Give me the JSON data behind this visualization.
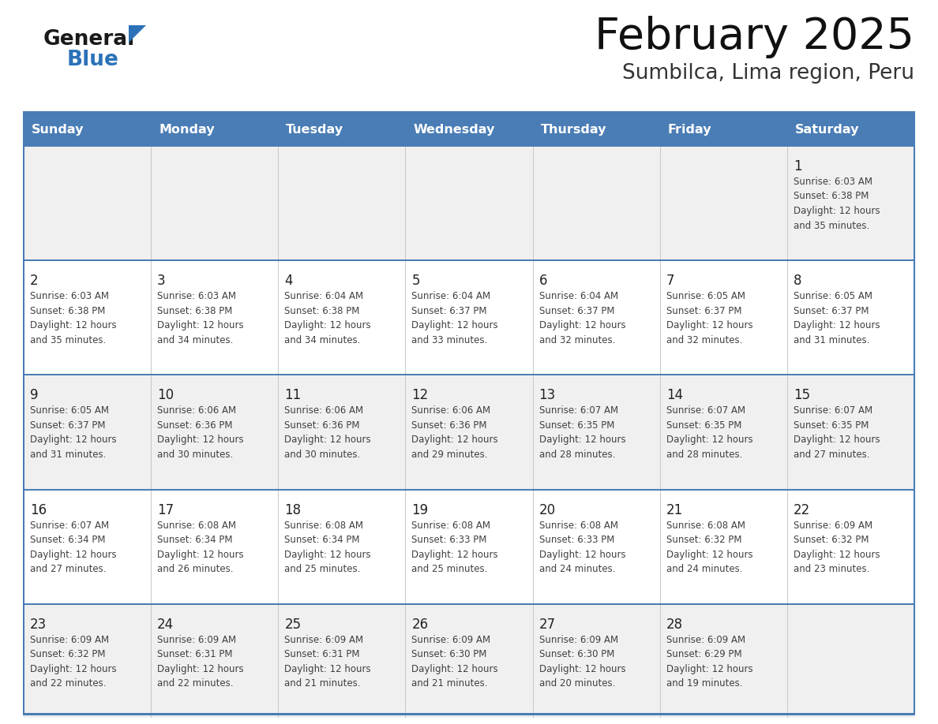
{
  "title": "February 2025",
  "subtitle": "Sumbilca, Lima region, Peru",
  "days_of_week": [
    "Sunday",
    "Monday",
    "Tuesday",
    "Wednesday",
    "Thursday",
    "Friday",
    "Saturday"
  ],
  "header_bg": "#4A7DB5",
  "header_text": "#FFFFFF",
  "cell_bg_even": "#F0F0F0",
  "cell_bg_odd": "#FFFFFF",
  "text_color": "#404040",
  "day_num_color": "#222222",
  "line_color": "#4A7DB5",
  "sep_color": "#C8C8C8",
  "calendar": [
    [
      null,
      null,
      null,
      null,
      null,
      null,
      1
    ],
    [
      2,
      3,
      4,
      5,
      6,
      7,
      8
    ],
    [
      9,
      10,
      11,
      12,
      13,
      14,
      15
    ],
    [
      16,
      17,
      18,
      19,
      20,
      21,
      22
    ],
    [
      23,
      24,
      25,
      26,
      27,
      28,
      null
    ]
  ],
  "cell_data": {
    "1": {
      "sunrise": "6:03 AM",
      "sunset": "6:38 PM",
      "hours": 12,
      "minutes": 35
    },
    "2": {
      "sunrise": "6:03 AM",
      "sunset": "6:38 PM",
      "hours": 12,
      "minutes": 35
    },
    "3": {
      "sunrise": "6:03 AM",
      "sunset": "6:38 PM",
      "hours": 12,
      "minutes": 34
    },
    "4": {
      "sunrise": "6:04 AM",
      "sunset": "6:38 PM",
      "hours": 12,
      "minutes": 34
    },
    "5": {
      "sunrise": "6:04 AM",
      "sunset": "6:37 PM",
      "hours": 12,
      "minutes": 33
    },
    "6": {
      "sunrise": "6:04 AM",
      "sunset": "6:37 PM",
      "hours": 12,
      "minutes": 32
    },
    "7": {
      "sunrise": "6:05 AM",
      "sunset": "6:37 PM",
      "hours": 12,
      "minutes": 32
    },
    "8": {
      "sunrise": "6:05 AM",
      "sunset": "6:37 PM",
      "hours": 12,
      "minutes": 31
    },
    "9": {
      "sunrise": "6:05 AM",
      "sunset": "6:37 PM",
      "hours": 12,
      "minutes": 31
    },
    "10": {
      "sunrise": "6:06 AM",
      "sunset": "6:36 PM",
      "hours": 12,
      "minutes": 30
    },
    "11": {
      "sunrise": "6:06 AM",
      "sunset": "6:36 PM",
      "hours": 12,
      "minutes": 30
    },
    "12": {
      "sunrise": "6:06 AM",
      "sunset": "6:36 PM",
      "hours": 12,
      "minutes": 29
    },
    "13": {
      "sunrise": "6:07 AM",
      "sunset": "6:35 PM",
      "hours": 12,
      "minutes": 28
    },
    "14": {
      "sunrise": "6:07 AM",
      "sunset": "6:35 PM",
      "hours": 12,
      "minutes": 28
    },
    "15": {
      "sunrise": "6:07 AM",
      "sunset": "6:35 PM",
      "hours": 12,
      "minutes": 27
    },
    "16": {
      "sunrise": "6:07 AM",
      "sunset": "6:34 PM",
      "hours": 12,
      "minutes": 27
    },
    "17": {
      "sunrise": "6:08 AM",
      "sunset": "6:34 PM",
      "hours": 12,
      "minutes": 26
    },
    "18": {
      "sunrise": "6:08 AM",
      "sunset": "6:34 PM",
      "hours": 12,
      "minutes": 25
    },
    "19": {
      "sunrise": "6:08 AM",
      "sunset": "6:33 PM",
      "hours": 12,
      "minutes": 25
    },
    "20": {
      "sunrise": "6:08 AM",
      "sunset": "6:33 PM",
      "hours": 12,
      "minutes": 24
    },
    "21": {
      "sunrise": "6:08 AM",
      "sunset": "6:32 PM",
      "hours": 12,
      "minutes": 24
    },
    "22": {
      "sunrise": "6:09 AM",
      "sunset": "6:32 PM",
      "hours": 12,
      "minutes": 23
    },
    "23": {
      "sunrise": "6:09 AM",
      "sunset": "6:32 PM",
      "hours": 12,
      "minutes": 22
    },
    "24": {
      "sunrise": "6:09 AM",
      "sunset": "6:31 PM",
      "hours": 12,
      "minutes": 22
    },
    "25": {
      "sunrise": "6:09 AM",
      "sunset": "6:31 PM",
      "hours": 12,
      "minutes": 21
    },
    "26": {
      "sunrise": "6:09 AM",
      "sunset": "6:30 PM",
      "hours": 12,
      "minutes": 21
    },
    "27": {
      "sunrise": "6:09 AM",
      "sunset": "6:30 PM",
      "hours": 12,
      "minutes": 20
    },
    "28": {
      "sunrise": "6:09 AM",
      "sunset": "6:29 PM",
      "hours": 12,
      "minutes": 19
    }
  }
}
